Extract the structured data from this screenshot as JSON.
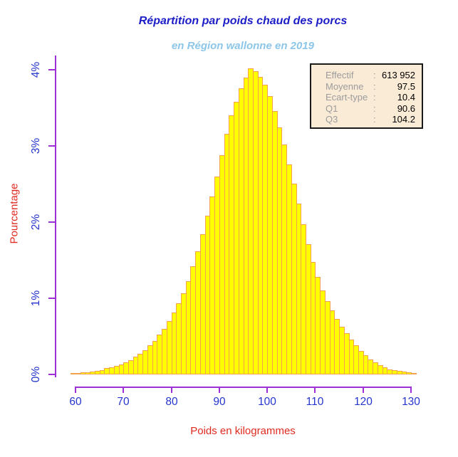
{
  "title": {
    "text": "Répartition par poids chaud des porcs"
  },
  "subtitle": {
    "text": "en Région wallonne en 2019"
  },
  "axes": {
    "y": {
      "label": "Pourcentage",
      "ticks": [
        "0%",
        "1%",
        "2%",
        "3%",
        "4%"
      ]
    },
    "x": {
      "label": "Poids en kilogrammes",
      "ticks": [
        60,
        70,
        80,
        90,
        100,
        110,
        120,
        130
      ]
    }
  },
  "stats_box": {
    "separator": ":",
    "rows": [
      {
        "label": "Effectif",
        "value": "613 952"
      },
      {
        "label": "Moyenne",
        "value": "97.5"
      },
      {
        "label": "Ecart-type",
        "value": "10.4"
      },
      {
        "label": "Q1",
        "value": "90.6"
      },
      {
        "label": "Q3",
        "value": "104.2"
      }
    ]
  },
  "chart_data": {
    "type": "bar",
    "subtype": "histogram",
    "title": "Répartition par poids chaud des porcs",
    "subtitle": "en Région wallonne en 2019",
    "xlabel": "Poids en kilogrammes",
    "ylabel": "Pourcentage",
    "y_unit": "percent",
    "bin_width_kg": 1,
    "bin_start_kg": 59,
    "xlim": [
      59,
      131
    ],
    "ylim": [
      0,
      4.2
    ],
    "grid": false,
    "legend_position": "top-right",
    "peak_bin_kg": 96,
    "peak_pct": 4.02,
    "values_pct": [
      0.02,
      0.02,
      0.03,
      0.03,
      0.04,
      0.05,
      0.06,
      0.08,
      0.09,
      0.11,
      0.13,
      0.16,
      0.19,
      0.23,
      0.27,
      0.32,
      0.38,
      0.44,
      0.52,
      0.6,
      0.7,
      0.81,
      0.93,
      1.07,
      1.22,
      1.42,
      1.62,
      1.84,
      2.08,
      2.34,
      2.6,
      2.88,
      3.16,
      3.4,
      3.58,
      3.76,
      3.9,
      4.02,
      3.98,
      3.91,
      3.8,
      3.65,
      3.46,
      3.24,
      3.02,
      2.76,
      2.5,
      2.24,
      1.97,
      1.71,
      1.48,
      1.28,
      1.1,
      0.96,
      0.84,
      0.73,
      0.63,
      0.54,
      0.46,
      0.38,
      0.31,
      0.25,
      0.2,
      0.16,
      0.12,
      0.09,
      0.07,
      0.06,
      0.05,
      0.04,
      0.03,
      0.02
    ]
  },
  "colors": {
    "title_text": "#1d1dc8",
    "subtitle_text": "#8cc6e8",
    "axis_line": "#9b30d5",
    "tick_label": "#2535cc",
    "axis_title": "#e02a20",
    "bar_fill": "#ffff00",
    "bar_border": "#f2a14f",
    "legend_bg": "#faebd7",
    "legend_label": "#9c9c9c",
    "legend_value": "#000000"
  }
}
